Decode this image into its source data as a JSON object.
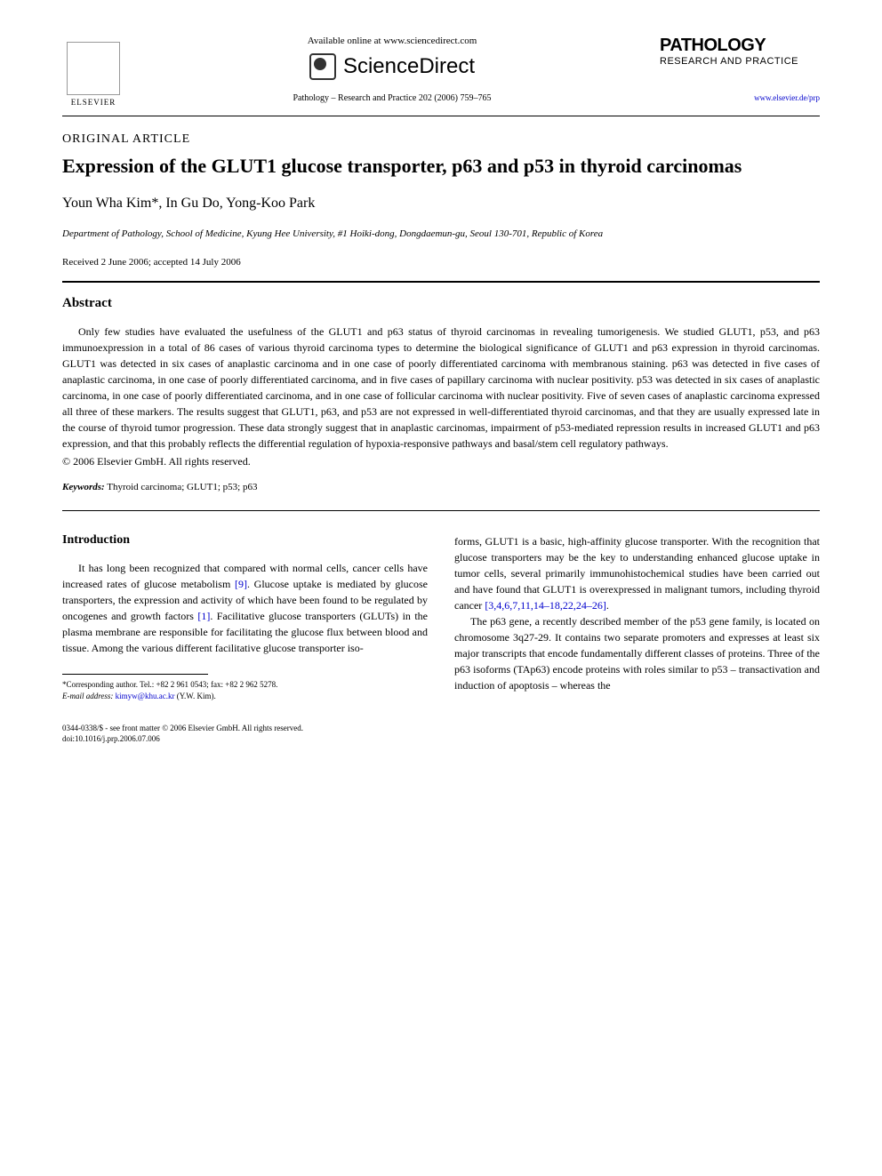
{
  "header": {
    "available_online": "Available online at www.sciencedirect.com",
    "sciencedirect": "ScienceDirect",
    "elsevier": "ELSEVIER",
    "citation": "Pathology – Research and Practice 202 (2006) 759–765",
    "journal_name": "PATHOLOGY",
    "journal_subtitle": "RESEARCH AND PRACTICE",
    "journal_url": "www.elsevier.de/prp"
  },
  "article": {
    "type": "ORIGINAL ARTICLE",
    "title": "Expression of the GLUT1 glucose transporter, p63 and p53 in thyroid carcinomas",
    "authors": "Youn Wha Kim*, In Gu Do, Yong-Koo Park",
    "affiliation": "Department of Pathology, School of Medicine, Kyung Hee University, #1 Hoiki-dong, Dongdaemun-gu, Seoul 130-701, Republic of Korea",
    "dates": "Received 2 June 2006; accepted 14 July 2006"
  },
  "abstract": {
    "heading": "Abstract",
    "text": "Only few studies have evaluated the usefulness of the GLUT1 and p63 status of thyroid carcinomas in revealing tumorigenesis. We studied GLUT1, p53, and p63 immunoexpression in a total of 86 cases of various thyroid carcinoma types to determine the biological significance of GLUT1 and p63 expression in thyroid carcinomas. GLUT1 was detected in six cases of anaplastic carcinoma and in one case of poorly differentiated carcinoma with membranous staining. p63 was detected in five cases of anaplastic carcinoma, in one case of poorly differentiated carcinoma, and in five cases of papillary carcinoma with nuclear positivity. p53 was detected in six cases of anaplastic carcinoma, in one case of poorly differentiated carcinoma, and in one case of follicular carcinoma with nuclear positivity. Five of seven cases of anaplastic carcinoma expressed all three of these markers. The results suggest that GLUT1, p63, and p53 are not expressed in well-differentiated thyroid carcinomas, and that they are usually expressed late in the course of thyroid tumor progression. These data strongly suggest that in anaplastic carcinomas, impairment of p53-mediated repression results in increased GLUT1 and p63 expression, and that this probably reflects the differential regulation of hypoxia-responsive pathways and basal/stem cell regulatory pathways.",
    "copyright": "© 2006 Elsevier GmbH. All rights reserved.",
    "keywords_label": "Keywords:",
    "keywords": " Thyroid carcinoma; GLUT1; p53; p63"
  },
  "introduction": {
    "heading": "Introduction",
    "col1_p1_a": "It has long been recognized that compared with normal cells, cancer cells have increased rates of glucose metabolism ",
    "ref1": "[9]",
    "col1_p1_b": ". Glucose uptake is mediated by glucose transporters, the expression and activity of which have been found to be regulated by oncogenes and growth factors ",
    "ref2": "[1]",
    "col1_p1_c": ". Facilitative glucose transporters (GLUTs) in the plasma membrane are responsible for facilitating the glucose flux between blood and tissue. Among the various different facilitative glucose transporter iso-",
    "col2_p1_a": "forms, GLUT1 is a basic, high-affinity glucose transporter. With the recognition that glucose transporters may be the key to understanding enhanced glucose uptake in tumor cells, several primarily immunohistochemical studies have been carried out and have found that GLUT1 is overexpressed in malignant tumors, including thyroid cancer ",
    "ref3": "[3,4,6,7,11,14–18,22,24–26]",
    "col2_p1_b": ".",
    "col2_p2": "The p63 gene, a recently described member of the p53 gene family, is located on chromosome 3q27-29. It contains two separate promoters and expresses at least six major transcripts that encode fundamentally different classes of proteins. Three of the p63 isoforms (TAp63) encode proteins with roles similar to p53 – transactivation and induction of apoptosis – whereas the"
  },
  "footnote": {
    "corresponding": "*Corresponding author. Tel.: +82 2 961 0543; fax: +82 2 962 5278.",
    "email_label": "E-mail address:",
    "email": " kimyw@khu.ac.kr",
    "email_after": " (Y.W. Kim)."
  },
  "bottom": {
    "issn": "0344-0338/$ - see front matter © 2006 Elsevier GmbH. All rights reserved.",
    "doi": "doi:10.1016/j.prp.2006.07.006"
  }
}
